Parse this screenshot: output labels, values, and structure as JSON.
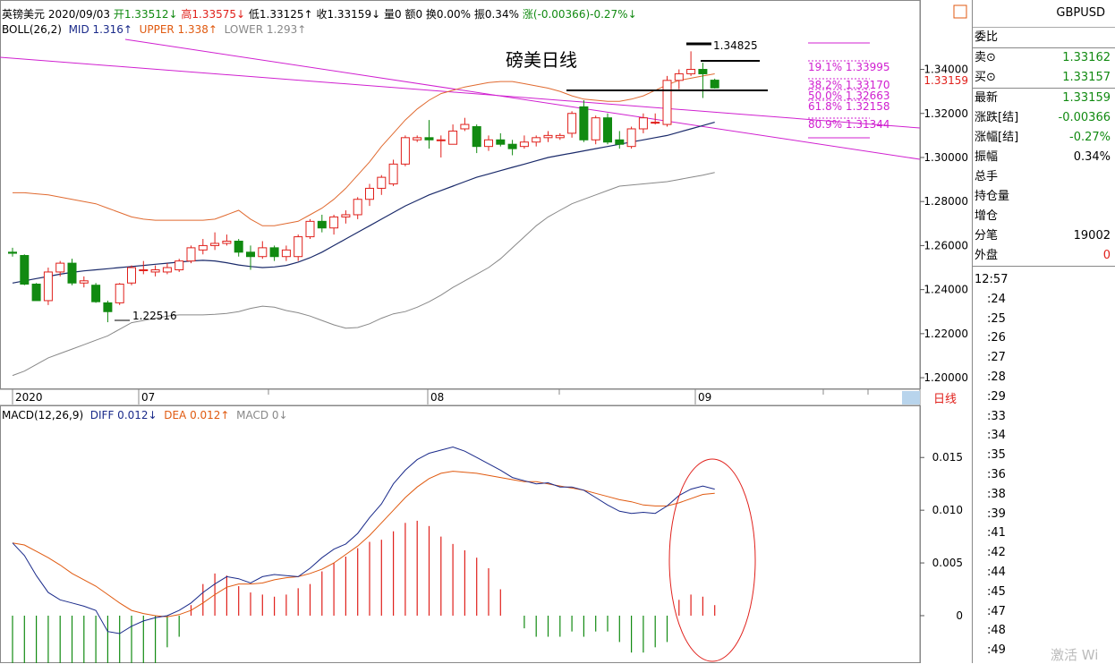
{
  "header": {
    "symbol": "英镑美元",
    "date": "2020/09/03",
    "open_label": "开",
    "open": "1.33512↓",
    "high_label": "高",
    "high": "1.33575↓",
    "low_label": "低",
    "low": "1.33125↑",
    "close_label": "收",
    "close": "1.33159↓",
    "volume": "量0",
    "amount": "额0",
    "turnover": "换0.00%",
    "amplitude": "振0.34%",
    "change": "涨(-0.00366)-0.27%↓"
  },
  "boll": {
    "name": "BOLL(26,2)",
    "mid": "MID 1.316↑",
    "upper": "UPPER 1.338↑",
    "lower": "LOWER 1.293↑"
  },
  "macd": {
    "name": "MACD(12,26,9)",
    "diff": "DIFF 0.012↓",
    "dea": "DEA 0.012↑",
    "macd": "MACD 0↓"
  },
  "annotations": {
    "title": "磅美日线",
    "high_label": "1.34825",
    "low_label": "1.22516",
    "current_price": "1.33159",
    "fib": [
      "19.1% 1.33995",
      "38.2% 1.33170",
      "50.0% 1.32663",
      "61.8% 1.32158",
      "80.9% 1.31344"
    ]
  },
  "price_axis": [
    "1.34000",
    "1.32000",
    "1.30000",
    "1.28000",
    "1.26000",
    "1.24000",
    "1.22000",
    "1.20000"
  ],
  "macd_axis": [
    "0.015",
    "0.010",
    "0.005",
    "0"
  ],
  "time_axis": [
    "2020",
    "07",
    "08",
    "09"
  ],
  "period_label": "日线",
  "right_panel": {
    "symbol": "GBPUSD",
    "rows": [
      {
        "label": "委比",
        "value": ""
      },
      {
        "label": "卖⊙",
        "value": "1.33162",
        "color": "green"
      },
      {
        "label": "买⊙",
        "value": "1.33157",
        "color": "green"
      },
      {
        "label": "最新",
        "value": "1.33159",
        "color": "green"
      },
      {
        "label": "涨跌[结]",
        "value": "-0.00366",
        "color": "green"
      },
      {
        "label": "涨幅[结]",
        "value": "-0.27%",
        "color": "green"
      },
      {
        "label": "振幅",
        "value": "0.34%",
        "color": "black"
      },
      {
        "label": "总手",
        "value": ""
      },
      {
        "label": "持仓量",
        "value": ""
      },
      {
        "label": "增仓",
        "value": ""
      },
      {
        "label": "分笔",
        "value": "19002",
        "color": "black"
      },
      {
        "label": "外盘",
        "value": "0",
        "color": "red"
      }
    ],
    "ticks": [
      "12:57",
      ":24",
      ":25",
      ":26",
      ":27",
      ":28",
      ":29",
      ":33",
      ":34",
      ":35",
      ":36",
      ":38",
      ":39",
      ":41",
      ":42",
      ":44",
      ":45",
      ":47",
      ":48",
      ":49"
    ]
  },
  "watermark": "激活 Wi",
  "colors": {
    "up": "#e0201b",
    "down": "#118a11",
    "mid": "#1a2a6a",
    "upper": "#e06a30",
    "lower": "#888888",
    "channel": "#d020d0",
    "fib": "#d020d0",
    "diff": "#1a2a8a",
    "dea": "#e05a10"
  },
  "chart_data": {
    "type": "candlestick",
    "ylim": [
      1.198,
      1.352
    ],
    "candles": [
      {
        "o": 1.257,
        "h": 1.259,
        "l": 1.255,
        "c": 1.2565
      },
      {
        "o": 1.2555,
        "h": 1.256,
        "l": 1.242,
        "c": 1.2425
      },
      {
        "o": 1.2425,
        "h": 1.243,
        "l": 1.235,
        "c": 1.235
      },
      {
        "o": 1.235,
        "h": 1.25,
        "l": 1.233,
        "c": 1.248
      },
      {
        "o": 1.248,
        "h": 1.253,
        "l": 1.246,
        "c": 1.252
      },
      {
        "o": 1.252,
        "h": 1.254,
        "l": 1.242,
        "c": 1.243
      },
      {
        "o": 1.243,
        "h": 1.246,
        "l": 1.241,
        "c": 1.244
      },
      {
        "o": 1.242,
        "h": 1.243,
        "l": 1.234,
        "c": 1.2345
      },
      {
        "o": 1.234,
        "h": 1.235,
        "l": 1.2252,
        "c": 1.23
      },
      {
        "o": 1.234,
        "h": 1.243,
        "l": 1.233,
        "c": 1.2425
      },
      {
        "o": 1.243,
        "h": 1.251,
        "l": 1.242,
        "c": 1.25
      },
      {
        "o": 1.249,
        "h": 1.253,
        "l": 1.247,
        "c": 1.249
      },
      {
        "o": 1.248,
        "h": 1.251,
        "l": 1.246,
        "c": 1.249
      },
      {
        "o": 1.248,
        "h": 1.252,
        "l": 1.247,
        "c": 1.25
      },
      {
        "o": 1.249,
        "h": 1.254,
        "l": 1.248,
        "c": 1.253
      },
      {
        "o": 1.253,
        "h": 1.26,
        "l": 1.252,
        "c": 1.259
      },
      {
        "o": 1.258,
        "h": 1.263,
        "l": 1.256,
        "c": 1.26
      },
      {
        "o": 1.26,
        "h": 1.266,
        "l": 1.258,
        "c": 1.261
      },
      {
        "o": 1.261,
        "h": 1.265,
        "l": 1.26,
        "c": 1.262
      },
      {
        "o": 1.262,
        "h": 1.263,
        "l": 1.255,
        "c": 1.257
      },
      {
        "o": 1.257,
        "h": 1.26,
        "l": 1.249,
        "c": 1.255
      },
      {
        "o": 1.255,
        "h": 1.262,
        "l": 1.254,
        "c": 1.259
      },
      {
        "o": 1.259,
        "h": 1.26,
        "l": 1.253,
        "c": 1.255
      },
      {
        "o": 1.255,
        "h": 1.26,
        "l": 1.253,
        "c": 1.258
      },
      {
        "o": 1.255,
        "h": 1.265,
        "l": 1.253,
        "c": 1.264
      },
      {
        "o": 1.264,
        "h": 1.272,
        "l": 1.263,
        "c": 1.271
      },
      {
        "o": 1.271,
        "h": 1.274,
        "l": 1.266,
        "c": 1.268
      },
      {
        "o": 1.268,
        "h": 1.274,
        "l": 1.265,
        "c": 1.273
      },
      {
        "o": 1.273,
        "h": 1.276,
        "l": 1.27,
        "c": 1.274
      },
      {
        "o": 1.274,
        "h": 1.282,
        "l": 1.272,
        "c": 1.281
      },
      {
        "o": 1.281,
        "h": 1.288,
        "l": 1.278,
        "c": 1.286
      },
      {
        "o": 1.286,
        "h": 1.292,
        "l": 1.283,
        "c": 1.291
      },
      {
        "o": 1.288,
        "h": 1.299,
        "l": 1.287,
        "c": 1.297
      },
      {
        "o": 1.297,
        "h": 1.31,
        "l": 1.296,
        "c": 1.309
      },
      {
        "o": 1.308,
        "h": 1.31,
        "l": 1.307,
        "c": 1.309
      },
      {
        "o": 1.309,
        "h": 1.317,
        "l": 1.304,
        "c": 1.308
      },
      {
        "o": 1.308,
        "h": 1.31,
        "l": 1.3,
        "c": 1.308
      },
      {
        "o": 1.306,
        "h": 1.315,
        "l": 1.306,
        "c": 1.312
      },
      {
        "o": 1.313,
        "h": 1.318,
        "l": 1.312,
        "c": 1.315
      },
      {
        "o": 1.314,
        "h": 1.315,
        "l": 1.302,
        "c": 1.305
      },
      {
        "o": 1.305,
        "h": 1.31,
        "l": 1.303,
        "c": 1.308
      },
      {
        "o": 1.308,
        "h": 1.311,
        "l": 1.305,
        "c": 1.306
      },
      {
        "o": 1.306,
        "h": 1.308,
        "l": 1.301,
        "c": 1.304
      },
      {
        "o": 1.305,
        "h": 1.31,
        "l": 1.304,
        "c": 1.307
      },
      {
        "o": 1.307,
        "h": 1.31,
        "l": 1.305,
        "c": 1.309
      },
      {
        "o": 1.309,
        "h": 1.312,
        "l": 1.307,
        "c": 1.31
      },
      {
        "o": 1.309,
        "h": 1.311,
        "l": 1.308,
        "c": 1.31
      },
      {
        "o": 1.311,
        "h": 1.321,
        "l": 1.309,
        "c": 1.32
      },
      {
        "o": 1.323,
        "h": 1.326,
        "l": 1.307,
        "c": 1.308
      },
      {
        "o": 1.308,
        "h": 1.319,
        "l": 1.306,
        "c": 1.318
      },
      {
        "o": 1.318,
        "h": 1.32,
        "l": 1.306,
        "c": 1.307
      },
      {
        "o": 1.308,
        "h": 1.312,
        "l": 1.304,
        "c": 1.306
      },
      {
        "o": 1.305,
        "h": 1.314,
        "l": 1.304,
        "c": 1.313
      },
      {
        "o": 1.313,
        "h": 1.32,
        "l": 1.311,
        "c": 1.318
      },
      {
        "o": 1.316,
        "h": 1.32,
        "l": 1.315,
        "c": 1.316
      },
      {
        "o": 1.315,
        "h": 1.337,
        "l": 1.314,
        "c": 1.335
      },
      {
        "o": 1.335,
        "h": 1.34,
        "l": 1.331,
        "c": 1.338
      },
      {
        "o": 1.338,
        "h": 1.3482,
        "l": 1.337,
        "c": 1.34
      },
      {
        "o": 1.34,
        "h": 1.343,
        "l": 1.327,
        "c": 1.338
      },
      {
        "o": 1.3351,
        "h": 1.3358,
        "l": 1.3313,
        "c": 1.3316
      }
    ],
    "boll_mid": [
      1.243,
      1.244,
      1.245,
      1.246,
      1.247,
      1.2478,
      1.2485,
      1.249,
      1.2495,
      1.25,
      1.2505,
      1.251,
      1.2515,
      1.252,
      1.2525,
      1.253,
      1.2533,
      1.253,
      1.2522,
      1.2512,
      1.2505,
      1.25,
      1.2503,
      1.251,
      1.2525,
      1.2545,
      1.257,
      1.26,
      1.263,
      1.266,
      1.269,
      1.272,
      1.275,
      1.278,
      1.2805,
      1.283,
      1.285,
      1.287,
      1.289,
      1.291,
      1.2925,
      1.294,
      1.2955,
      1.297,
      1.2985,
      1.3,
      1.301,
      1.302,
      1.303,
      1.304,
      1.305,
      1.306,
      1.307,
      1.308,
      1.309,
      1.31,
      1.3115,
      1.313,
      1.3145,
      1.316
    ],
    "boll_upper": [
      1.284,
      1.284,
      1.2835,
      1.283,
      1.282,
      1.281,
      1.28,
      1.279,
      1.277,
      1.275,
      1.273,
      1.272,
      1.2715,
      1.2715,
      1.2715,
      1.2715,
      1.2715,
      1.272,
      1.274,
      1.276,
      1.272,
      1.269,
      1.269,
      1.27,
      1.271,
      1.274,
      1.277,
      1.281,
      1.286,
      1.292,
      1.298,
      1.305,
      1.311,
      1.317,
      1.322,
      1.326,
      1.329,
      1.3305,
      1.332,
      1.333,
      1.334,
      1.3345,
      1.3345,
      1.3335,
      1.3325,
      1.3315,
      1.33,
      1.328,
      1.3265,
      1.326,
      1.3255,
      1.3255,
      1.3265,
      1.328,
      1.3305,
      1.333,
      1.335,
      1.336,
      1.337,
      1.338
    ],
    "boll_lower": [
      1.201,
      1.203,
      1.206,
      1.209,
      1.211,
      1.213,
      1.215,
      1.217,
      1.219,
      1.222,
      1.225,
      1.226,
      1.227,
      1.228,
      1.2285,
      1.2285,
      1.2285,
      1.2288,
      1.2292,
      1.23,
      1.2315,
      1.2325,
      1.232,
      1.2305,
      1.2295,
      1.228,
      1.226,
      1.224,
      1.2225,
      1.2228,
      1.2245,
      1.227,
      1.229,
      1.23,
      1.232,
      1.2345,
      1.2375,
      1.241,
      1.244,
      1.247,
      1.25,
      1.254,
      1.259,
      1.264,
      1.269,
      1.273,
      1.276,
      1.279,
      1.281,
      1.283,
      1.285,
      1.287,
      1.2875,
      1.288,
      1.2885,
      1.289,
      1.29,
      1.291,
      1.292,
      1.2932
    ],
    "macd_ylim": [
      -0.0045,
      0.0185
    ],
    "diff": [
      0.0069,
      0.0057,
      0.0038,
      0.0022,
      0.0015,
      0.0012,
      0.0009,
      0.0005,
      -0.0015,
      -0.0017,
      -0.001,
      -0.0005,
      -0.0002,
      0.0,
      0.0005,
      0.0012,
      0.0022,
      0.003,
      0.0037,
      0.0035,
      0.0031,
      0.0037,
      0.0039,
      0.0038,
      0.0037,
      0.0045,
      0.0055,
      0.0063,
      0.0068,
      0.0078,
      0.0093,
      0.0106,
      0.0125,
      0.0138,
      0.0148,
      0.0154,
      0.0157,
      0.016,
      0.0156,
      0.015,
      0.0144,
      0.0138,
      0.0131,
      0.0128,
      0.0125,
      0.0126,
      0.0122,
      0.0122,
      0.0119,
      0.0112,
      0.0105,
      0.0099,
      0.0097,
      0.0098,
      0.0097,
      0.0104,
      0.0114,
      0.012,
      0.0123,
      0.012
    ],
    "dea": [
      0.0069,
      0.0067,
      0.0061,
      0.0055,
      0.0048,
      0.004,
      0.0034,
      0.0028,
      0.002,
      0.0012,
      0.0005,
      0.0002,
      0.0,
      -0.0001,
      0.0001,
      0.0005,
      0.0012,
      0.002,
      0.0027,
      0.003,
      0.003,
      0.0031,
      0.0034,
      0.0036,
      0.0037,
      0.004,
      0.0044,
      0.005,
      0.0058,
      0.0066,
      0.0076,
      0.0088,
      0.01,
      0.0112,
      0.0122,
      0.013,
      0.0135,
      0.0137,
      0.0136,
      0.0135,
      0.0133,
      0.0131,
      0.0129,
      0.0127,
      0.0127,
      0.0125,
      0.0123,
      0.0121,
      0.0119,
      0.0116,
      0.0113,
      0.011,
      0.0108,
      0.0105,
      0.0104,
      0.0104,
      0.0107,
      0.0111,
      0.0115,
      0.0116
    ],
    "macd_hist": [
      -0.007,
      -0.007,
      -0.007,
      -0.007,
      -0.007,
      -0.007,
      -0.007,
      -0.007,
      -0.007,
      -0.0075,
      -0.007,
      -0.007,
      -0.0065,
      -0.003,
      -0.002,
      0.001,
      0.003,
      0.004,
      0.0038,
      0.0028,
      0.0022,
      0.002,
      0.0018,
      0.002,
      0.0026,
      0.003,
      0.0042,
      0.005,
      0.0056,
      0.0064,
      0.007,
      0.0072,
      0.008,
      0.0088,
      0.009,
      0.0085,
      0.0075,
      0.0068,
      0.0062,
      0.0055,
      0.0045,
      0.0025,
      0.0,
      -0.0012,
      -0.002,
      -0.002,
      -0.002,
      -0.0015,
      -0.002,
      -0.0015,
      -0.0015,
      -0.0025,
      -0.0035,
      -0.0035,
      -0.003,
      -0.0025,
      0.0015,
      0.002,
      0.0018,
      0.001
    ]
  }
}
